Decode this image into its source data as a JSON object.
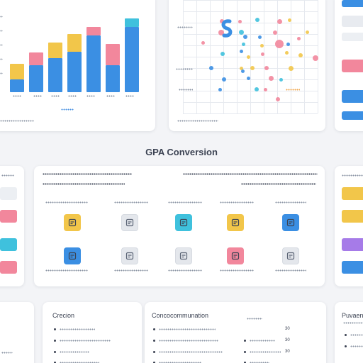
{
  "page": {
    "section_title": "GPA Conversion"
  },
  "bottom_left_card": {
    "heading": "Crecion"
  },
  "bottom_middle_card": {
    "heading": "Concocommunation",
    "rows": [
      {
        "value": "30"
      },
      {
        "value": "30"
      },
      {
        "value": "30"
      }
    ]
  },
  "bottom_right_card": {
    "heading": "Puvaen"
  },
  "colors": {
    "blue": "#3b8fe3",
    "yellow": "#f2c64a",
    "pink": "#f2879c",
    "cyan": "#3fc1dd",
    "purple": "#a67be8",
    "light_gray": "#e4e7ec"
  },
  "bar_chart": {
    "stacks": [
      {
        "base": 0.18,
        "top": 0.22,
        "top_color": "yellow"
      },
      {
        "base": 0.38,
        "top": 0.18,
        "top_color": "pink"
      },
      {
        "base": 0.48,
        "top": 0.22,
        "top_color": "yellow"
      },
      {
        "base": 0.57,
        "top": 0.25,
        "top_color": "yellow"
      },
      {
        "base": 0.8,
        "top": 0.12,
        "top_color": "pink"
      },
      {
        "base": 0.38,
        "top": 0.3,
        "top_color": "pink"
      },
      {
        "base": 0.92,
        "top": 0.12,
        "top_color": "cyan"
      }
    ]
  },
  "tiles": {
    "row1": [
      {
        "color": "yellow",
        "icon": "gpa-calc-icon"
      },
      {
        "color": "light_gray",
        "icon": "grade-table-icon"
      },
      {
        "color": "cyan",
        "icon": "transcript-icon"
      },
      {
        "color": "yellow",
        "icon": "credit-icon"
      },
      {
        "color": "blue",
        "icon": "scale-icon"
      }
    ],
    "row2": [
      {
        "color": "blue",
        "icon": "course-icon"
      },
      {
        "color": "light_gray",
        "icon": "calendar-icon"
      },
      {
        "color": "light_gray",
        "icon": "student-icon"
      },
      {
        "color": "pink",
        "icon": "percent-icon"
      },
      {
        "color": "light_gray",
        "icon": "report-icon"
      }
    ]
  }
}
